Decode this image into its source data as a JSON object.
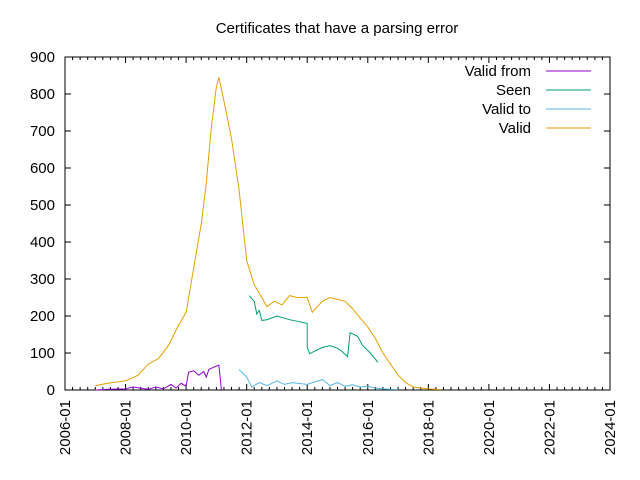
{
  "chart_data": {
    "type": "line",
    "title": "Certificates that have a parsing error",
    "xlabel": "",
    "ylabel": "",
    "x_axis": {
      "type": "date",
      "range": [
        "2006-01",
        "2024-01"
      ],
      "ticks": [
        "2006-01",
        "2008-01",
        "2010-01",
        "2012-01",
        "2014-01",
        "2016-01",
        "2018-01",
        "2020-01",
        "2022-01",
        "2024-01"
      ]
    },
    "y_axis": {
      "range": [
        0,
        900
      ],
      "ticks": [
        0,
        100,
        200,
        300,
        400,
        500,
        600,
        700,
        800,
        900
      ]
    },
    "grid": false,
    "legend_position": "top-right",
    "series": [
      {
        "name": "Valid from",
        "color": "#9400d3",
        "points": [
          [
            "2007-01",
            0
          ],
          [
            "2007-06",
            2
          ],
          [
            "2008-01",
            3
          ],
          [
            "2008-04",
            8
          ],
          [
            "2008-07",
            5
          ],
          [
            "2008-10",
            2
          ],
          [
            "2009-01",
            8
          ],
          [
            "2009-04",
            3
          ],
          [
            "2009-07",
            15
          ],
          [
            "2009-09",
            5
          ],
          [
            "2009-11",
            18
          ],
          [
            "2010-01",
            10
          ],
          [
            "2010-02",
            48
          ],
          [
            "2010-04",
            52
          ],
          [
            "2010-06",
            40
          ],
          [
            "2010-08",
            50
          ],
          [
            "2010-09",
            35
          ],
          [
            "2010-10",
            55
          ],
          [
            "2010-12",
            62
          ],
          [
            "2011-02",
            67
          ],
          [
            "2011-03",
            1
          ]
        ]
      },
      {
        "name": "Seen",
        "color": "#009e73",
        "points": [
          [
            "2012-02",
            255
          ],
          [
            "2012-04",
            240
          ],
          [
            "2012-05",
            205
          ],
          [
            "2012-06",
            215
          ],
          [
            "2012-07",
            188
          ],
          [
            "2012-09",
            190
          ],
          [
            "2013-01",
            200
          ],
          [
            "2013-06",
            190
          ],
          [
            "2014-01",
            180
          ],
          [
            "2014-01",
            115
          ],
          [
            "2014-02",
            98
          ],
          [
            "2014-04",
            105
          ],
          [
            "2014-07",
            115
          ],
          [
            "2014-10",
            120
          ],
          [
            "2015-01",
            113
          ],
          [
            "2015-03",
            103
          ],
          [
            "2015-05",
            90
          ],
          [
            "2015-06",
            155
          ],
          [
            "2015-09",
            145
          ],
          [
            "2015-11",
            120
          ],
          [
            "2016-02",
            100
          ],
          [
            "2016-05",
            75
          ]
        ]
      },
      {
        "name": "Valid to",
        "color": "#56b4e9",
        "points": [
          [
            "2011-10",
            55
          ],
          [
            "2012-01",
            35
          ],
          [
            "2012-03",
            8
          ],
          [
            "2012-06",
            20
          ],
          [
            "2012-09",
            12
          ],
          [
            "2013-01",
            24
          ],
          [
            "2013-04",
            15
          ],
          [
            "2013-07",
            20
          ],
          [
            "2014-01",
            15
          ],
          [
            "2014-04",
            22
          ],
          [
            "2014-07",
            28
          ],
          [
            "2014-10",
            12
          ],
          [
            "2015-01",
            20
          ],
          [
            "2015-04",
            10
          ],
          [
            "2015-07",
            14
          ],
          [
            "2015-10",
            8
          ],
          [
            "2016-01",
            10
          ],
          [
            "2016-04",
            5
          ],
          [
            "2016-07",
            3
          ],
          [
            "2017-01",
            1
          ]
        ]
      },
      {
        "name": "Valid",
        "color": "#e69f00",
        "points": [
          [
            "2007-01",
            12
          ],
          [
            "2007-06",
            18
          ],
          [
            "2008-01",
            25
          ],
          [
            "2008-06",
            40
          ],
          [
            "2008-10",
            70
          ],
          [
            "2009-02",
            85
          ],
          [
            "2009-06",
            120
          ],
          [
            "2009-10",
            175
          ],
          [
            "2010-01",
            210
          ],
          [
            "2010-04",
            330
          ],
          [
            "2010-07",
            450
          ],
          [
            "2010-09",
            560
          ],
          [
            "2010-11",
            710
          ],
          [
            "2011-01",
            820
          ],
          [
            "2011-02",
            845
          ],
          [
            "2011-04",
            780
          ],
          [
            "2011-07",
            680
          ],
          [
            "2011-10",
            540
          ],
          [
            "2012-01",
            350
          ],
          [
            "2012-04",
            285
          ],
          [
            "2012-07",
            250
          ],
          [
            "2012-09",
            225
          ],
          [
            "2012-12",
            240
          ],
          [
            "2013-03",
            230
          ],
          [
            "2013-06",
            255
          ],
          [
            "2013-09",
            250
          ],
          [
            "2014-01",
            250
          ],
          [
            "2014-03",
            210
          ],
          [
            "2014-07",
            240
          ],
          [
            "2014-10",
            250
          ],
          [
            "2015-01",
            245
          ],
          [
            "2015-04",
            240
          ],
          [
            "2015-07",
            220
          ],
          [
            "2015-10",
            195
          ],
          [
            "2016-01",
            170
          ],
          [
            "2016-04",
            140
          ],
          [
            "2016-07",
            100
          ],
          [
            "2016-10",
            70
          ],
          [
            "2017-01",
            40
          ],
          [
            "2017-04",
            20
          ],
          [
            "2017-07",
            8
          ],
          [
            "2018-01",
            3
          ],
          [
            "2018-06",
            1
          ]
        ]
      }
    ]
  }
}
